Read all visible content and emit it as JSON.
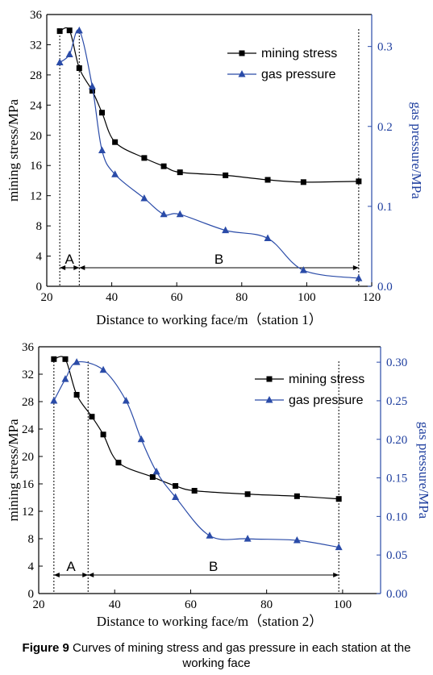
{
  "chart_data": [
    {
      "type": "line",
      "xlabel": "Distance to working face/m（station 1）",
      "ylabel": "mining stress/MPa",
      "y2label": "gas pressure/MPa",
      "xlim": [
        20,
        120
      ],
      "ylim": [
        0,
        36
      ],
      "y2lim": [
        0,
        0.34
      ],
      "xticks": [
        "20",
        "40",
        "60",
        "80",
        "100",
        "120"
      ],
      "yticks": [
        "0",
        "4",
        "8",
        "12",
        "16",
        "20",
        "24",
        "28",
        "32",
        "36"
      ],
      "y2ticks": [
        "0.0",
        "0.1",
        "0.2",
        "0.3"
      ],
      "legend_position": "top-right",
      "series": [
        {
          "name": "mining stress",
          "axis": "left",
          "color": "#000000",
          "marker": "square",
          "x": [
            24,
            27,
            30,
            34,
            37,
            41,
            50,
            56,
            61,
            75,
            88,
            99,
            116
          ],
          "y": [
            33.8,
            33.9,
            28.9,
            25.9,
            23,
            19.1,
            17,
            15.9,
            15.1,
            14.7,
            14.1,
            13.8,
            13.9
          ]
        },
        {
          "name": "gas pressure",
          "axis": "right",
          "color": "#2a4ba8",
          "marker": "triangle",
          "x": [
            24,
            27,
            30,
            34,
            37,
            41,
            50,
            56,
            61,
            75,
            88,
            99,
            116
          ],
          "y": [
            0.28,
            0.29,
            0.32,
            0.25,
            0.17,
            0.14,
            0.11,
            0.09,
            0.09,
            0.07,
            0.06,
            0.02,
            0.01
          ]
        }
      ],
      "regions": [
        {
          "label": "A",
          "from": 24,
          "to": 30
        },
        {
          "label": "B",
          "from": 30,
          "to": 116
        }
      ]
    },
    {
      "type": "line",
      "xlabel": "Distance to working face/m（station 2）",
      "ylabel": "mining stress/MPa",
      "y2label": "gas pressure/MPa",
      "xlim": [
        20,
        110
      ],
      "ylim": [
        0,
        36
      ],
      "y2lim": [
        0,
        0.32
      ],
      "xticks": [
        "20",
        "40",
        "60",
        "80",
        "100"
      ],
      "yticks": [
        "0",
        "4",
        "8",
        "12",
        "16",
        "20",
        "24",
        "28",
        "32",
        "36"
      ],
      "y2ticks": [
        "0.00",
        "0.05",
        "0.10",
        "0.15",
        "0.20",
        "0.25",
        "0.30"
      ],
      "legend_position": "top-right",
      "series": [
        {
          "name": "mining stress",
          "axis": "left",
          "color": "#000000",
          "marker": "square",
          "x": [
            24,
            27,
            30,
            34,
            37,
            41,
            50,
            56,
            61,
            75,
            88,
            99
          ],
          "y": [
            34.2,
            34.2,
            29,
            25.8,
            23.2,
            19.1,
            17,
            15.7,
            15,
            14.5,
            14.2,
            13.8
          ]
        },
        {
          "name": "gas pressure",
          "axis": "right",
          "color": "#2a4ba8",
          "marker": "triangle",
          "x": [
            24,
            27,
            30,
            37,
            43,
            47,
            51,
            56,
            65,
            75,
            88,
            99
          ],
          "y": [
            0.25,
            0.278,
            0.3,
            0.29,
            0.25,
            0.2,
            0.158,
            0.125,
            0.075,
            0.071,
            0.069,
            0.06
          ]
        }
      ],
      "regions": [
        {
          "label": "A",
          "from": 24,
          "to": 33
        },
        {
          "label": "B",
          "from": 33,
          "to": 99
        }
      ]
    }
  ],
  "caption": {
    "prefix": "Figure 9",
    "text": " Curves of mining stress and gas pressure in each station at the working face"
  }
}
